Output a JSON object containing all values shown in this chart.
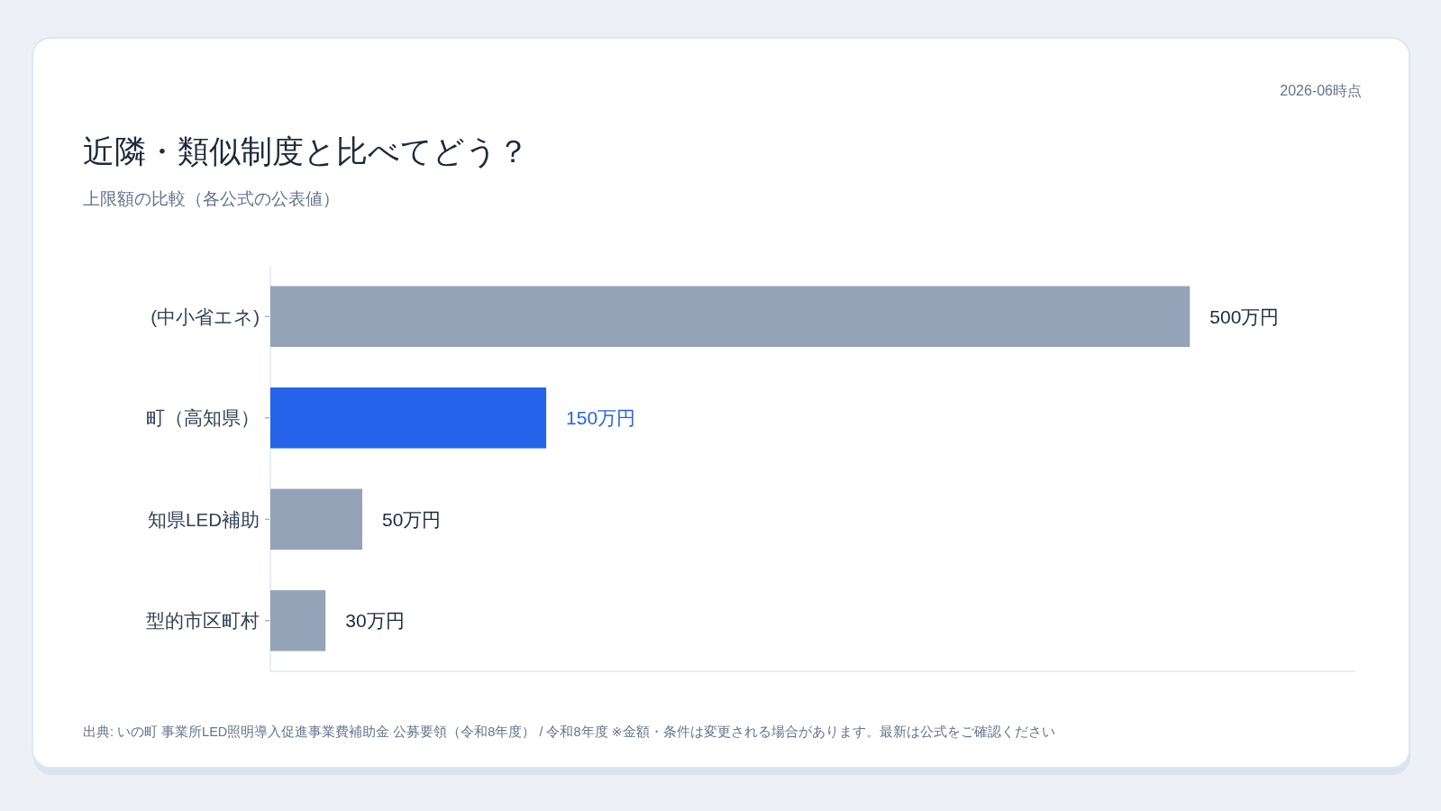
{
  "chart_data": {
    "type": "bar",
    "orientation": "horizontal",
    "title": "近隣・類似制度と比べてどう？",
    "subtitle": "上限額の比較（各公式の公表値）",
    "categories": [
      "(中小省エネ)",
      "町（高知県）",
      "知県LED補助",
      "型的市区町村"
    ],
    "values": [
      500,
      150,
      50,
      30
    ],
    "colors": [
      "#94a3b8",
      "#2563eb",
      "#94a3b8",
      "#94a3b8"
    ],
    "value_labels": [
      "500万円",
      "150万円",
      "50万円",
      "30万円"
    ],
    "xlim": [
      0,
      590
    ],
    "tick_labels": "y",
    "annotations": [
      "2026-06時点",
      "出典: いの町 事業所LED照明導入促進事業費補助金 公募要領（令和8年度） / 令和8年度 ※金額・条件は変更される場合があります。最新は公式をご確認ください"
    ]
  }
}
